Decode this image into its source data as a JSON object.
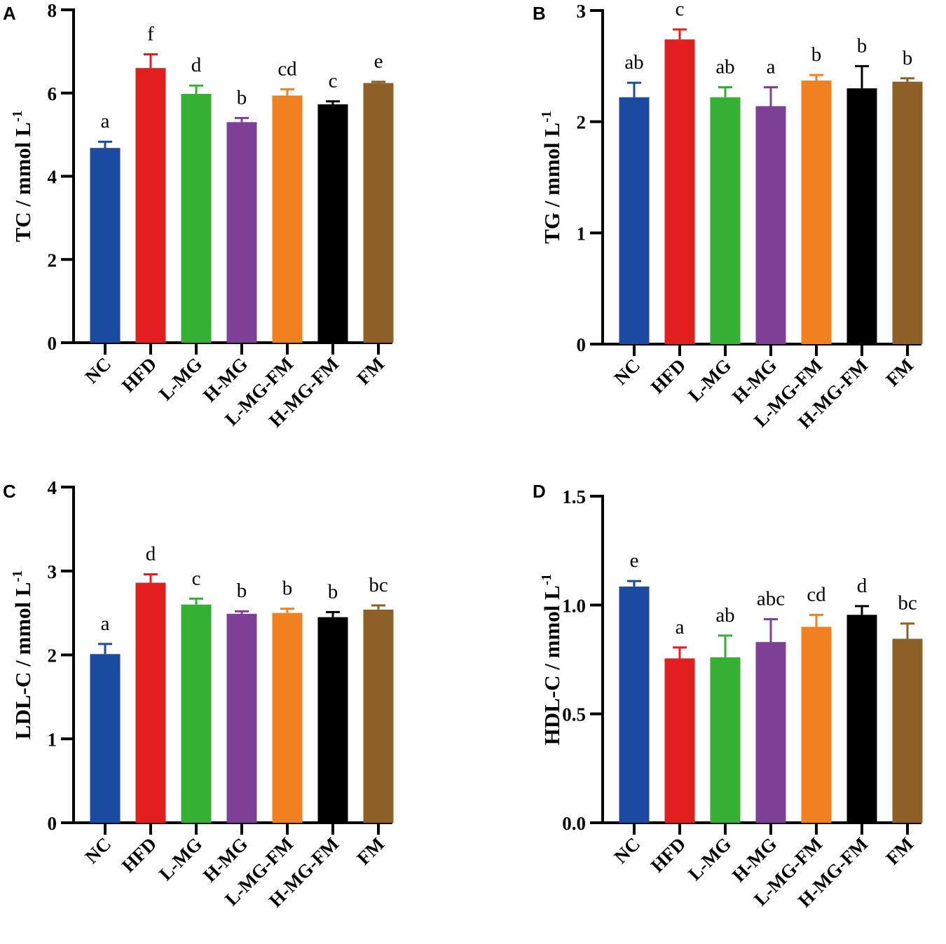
{
  "colors": [
    "#1c4aa0",
    "#e21f1e",
    "#35b035",
    "#7e3f97",
    "#f08020",
    "#000000",
    "#8c6027"
  ],
  "chart_data": [
    {
      "type": "bar",
      "panel": "A",
      "ylabel": "TC / mmol L",
      "ylabel_sup": "-1",
      "ylim": [
        0,
        8
      ],
      "yticks": [
        0,
        2,
        4,
        6,
        8
      ],
      "categories": [
        "NC",
        "HFD",
        "L-MG",
        "H-MG",
        "L-MG-FM",
        "H-MG-FM",
        "FM"
      ],
      "values": [
        4.68,
        6.6,
        5.98,
        5.3,
        5.94,
        5.73,
        6.24
      ],
      "errors": [
        0.15,
        0.33,
        0.2,
        0.1,
        0.15,
        0.07,
        0.03
      ],
      "labels": [
        "a",
        "f",
        "d",
        "b",
        "cd",
        "c",
        "e"
      ]
    },
    {
      "type": "bar",
      "panel": "B",
      "ylabel": "TG / mmol L",
      "ylabel_sup": "-1",
      "ylim": [
        0,
        3
      ],
      "yticks": [
        0,
        1,
        2,
        3
      ],
      "categories": [
        "NC",
        "HFD",
        "L-MG",
        "H-MG",
        "L-MG-FM",
        "H-MG-FM",
        "FM"
      ],
      "values": [
        2.22,
        2.74,
        2.22,
        2.14,
        2.37,
        2.3,
        2.36
      ],
      "errors": [
        0.13,
        0.09,
        0.09,
        0.17,
        0.05,
        0.2,
        0.03
      ],
      "labels": [
        "ab",
        "c",
        "ab",
        "a",
        "b",
        "b",
        "b"
      ]
    },
    {
      "type": "bar",
      "panel": "C",
      "ylabel": "LDL-C / mmol L",
      "ylabel_sup": "-1",
      "ylim": [
        0,
        4
      ],
      "yticks": [
        0,
        1,
        2,
        3,
        4
      ],
      "categories": [
        "NC",
        "HFD",
        "L-MG",
        "H-MG",
        "L-MG-FM",
        "H-MG-FM",
        "FM"
      ],
      "values": [
        2.01,
        2.86,
        2.6,
        2.49,
        2.5,
        2.45,
        2.54
      ],
      "errors": [
        0.12,
        0.1,
        0.07,
        0.03,
        0.05,
        0.06,
        0.05
      ],
      "labels": [
        "a",
        "d",
        "c",
        "b",
        "b",
        "b",
        "bc"
      ]
    },
    {
      "type": "bar",
      "panel": "D",
      "ylabel": "HDL-C / mmol L",
      "ylabel_sup": "-1",
      "ylim": [
        0,
        1.5
      ],
      "yticks": [
        "0.0",
        "0.5",
        "1.0",
        "1.5"
      ],
      "categories": [
        "NC",
        "HFD",
        "L-MG",
        "H-MG",
        "L-MG-FM",
        "H-MG-FM",
        "FM"
      ],
      "values": [
        1.085,
        0.755,
        0.76,
        0.83,
        0.9,
        0.955,
        0.845
      ],
      "errors": [
        0.025,
        0.05,
        0.1,
        0.105,
        0.055,
        0.04,
        0.07
      ],
      "labels": [
        "e",
        "a",
        "ab",
        "abc",
        "cd",
        "d",
        "bc"
      ]
    }
  ]
}
